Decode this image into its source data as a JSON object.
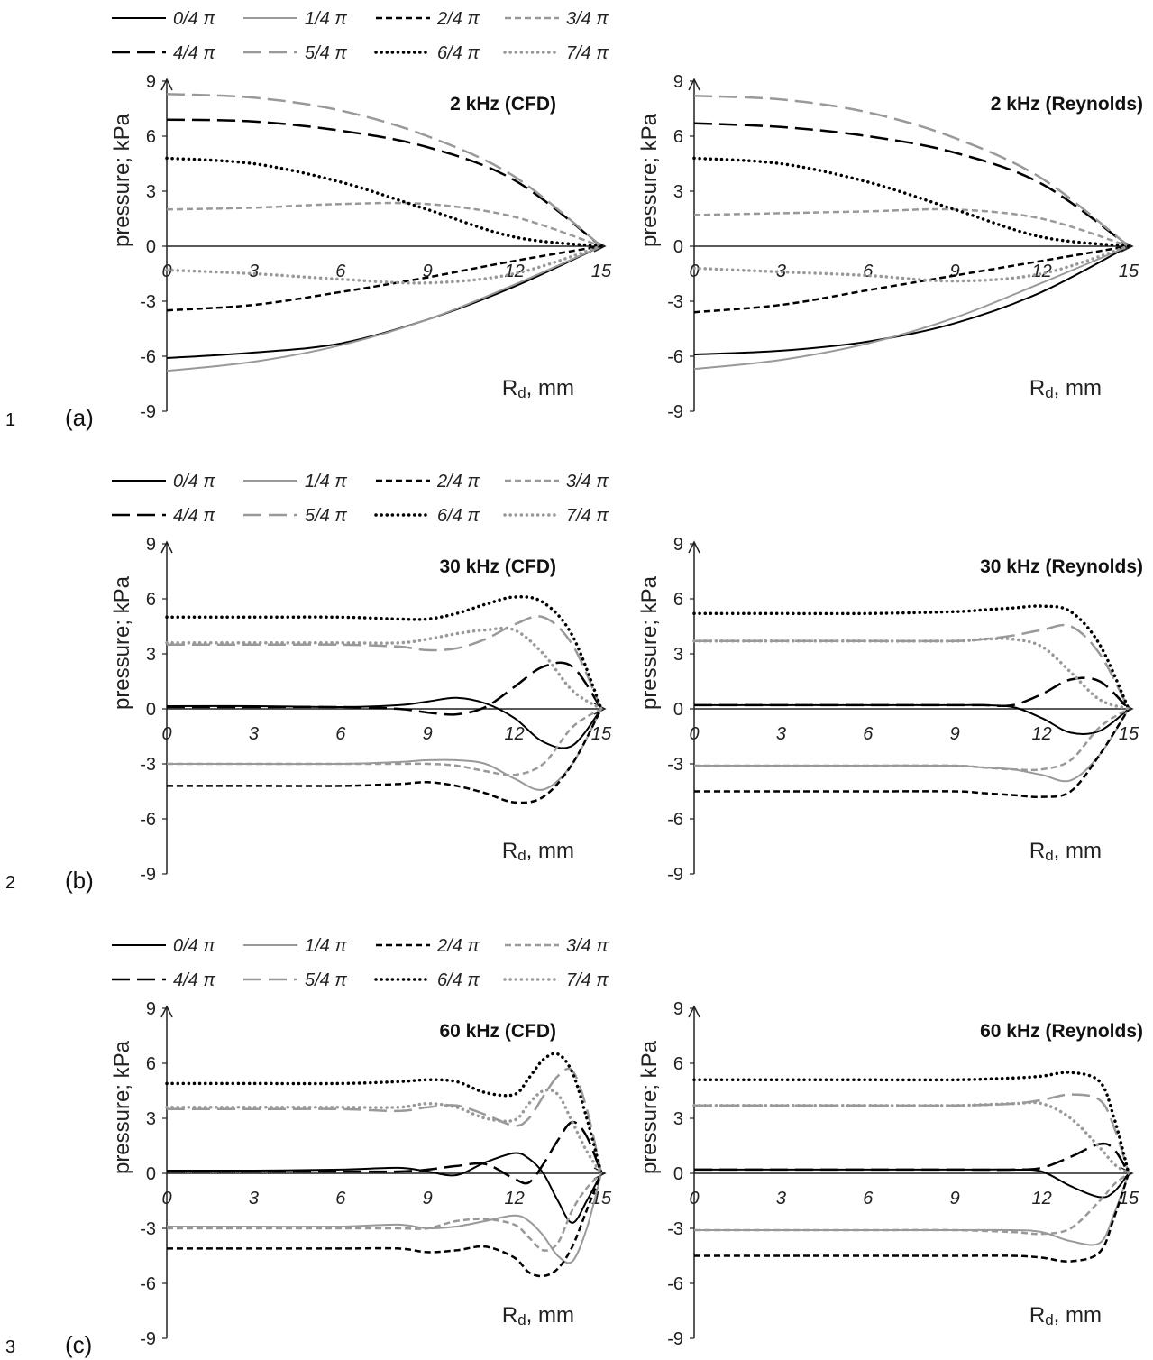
{
  "figure": {
    "rows": [
      {
        "number": "1",
        "letter": "(a)"
      },
      {
        "number": "2",
        "letter": "(b)"
      },
      {
        "number": "3",
        "letter": "(c)"
      }
    ],
    "legend_entries": [
      "0/4 π",
      "1/4 π",
      "2/4 π",
      "3/4 π",
      "4/4 π",
      "5/4 π",
      "6/4 π",
      "7/4 π"
    ],
    "series_styles": [
      {
        "color": "#000000",
        "dash": "solid",
        "width": 2
      },
      {
        "color": "#999999",
        "dash": "solid",
        "width": 2
      },
      {
        "color": "#000000",
        "dash": "short",
        "width": 2.5
      },
      {
        "color": "#999999",
        "dash": "short",
        "width": 2.5
      },
      {
        "color": "#000000",
        "dash": "long",
        "width": 2.5
      },
      {
        "color": "#999999",
        "dash": "long",
        "width": 2.5
      },
      {
        "color": "#000000",
        "dash": "dot",
        "width": 3.5
      },
      {
        "color": "#999999",
        "dash": "dot",
        "width": 3.5
      }
    ]
  },
  "chart_data": [
    {
      "type": "line",
      "title": "2 kHz (CFD)",
      "xlabel_main": "R",
      "xlabel_sub": "d",
      "xlabel_rest": ", mm",
      "ylabel": "pressure; kPa",
      "xlim": [
        0,
        15
      ],
      "ylim": [
        -9,
        9
      ],
      "xticks": [
        "0",
        "3",
        "6",
        "9",
        "12",
        "15"
      ],
      "yticks": [
        "9",
        "6",
        "3",
        "0",
        "-3",
        "-6",
        "-9"
      ],
      "grid": false,
      "legend": "top",
      "x": [
        0,
        3,
        6,
        9,
        12,
        15
      ],
      "series": [
        {
          "values": [
            -6.1,
            -5.8,
            -5.3,
            -4.0,
            -2.2,
            0
          ]
        },
        {
          "values": [
            -6.8,
            -6.3,
            -5.4,
            -4.0,
            -2.1,
            0
          ]
        },
        {
          "values": [
            -3.5,
            -3.2,
            -2.5,
            -1.7,
            -0.8,
            0
          ]
        },
        {
          "values": [
            2.0,
            2.1,
            2.3,
            2.3,
            1.6,
            0
          ]
        },
        {
          "values": [
            6.9,
            6.8,
            6.3,
            5.4,
            3.6,
            0
          ]
        },
        {
          "values": [
            8.3,
            8.1,
            7.4,
            6.0,
            3.8,
            0
          ]
        },
        {
          "values": [
            4.8,
            4.5,
            3.5,
            2.0,
            0.5,
            0
          ]
        },
        {
          "values": [
            -1.3,
            -1.5,
            -1.8,
            -2.0,
            -1.5,
            0
          ]
        }
      ]
    },
    {
      "type": "line",
      "title": "2 kHz (Reynolds)",
      "xlabel_main": "R",
      "xlabel_sub": "d",
      "xlabel_rest": ", mm",
      "ylabel": "pressure; kPa",
      "xlim": [
        0,
        15
      ],
      "ylim": [
        -9,
        9
      ],
      "xticks": [
        "0",
        "3",
        "6",
        "9",
        "12",
        "15"
      ],
      "yticks": [
        "9",
        "6",
        "3",
        "0",
        "-3",
        "-6",
        "-9"
      ],
      "grid": false,
      "x": [
        0,
        3,
        6,
        9,
        12,
        15
      ],
      "series": [
        {
          "values": [
            -5.9,
            -5.7,
            -5.2,
            -4.2,
            -2.5,
            0
          ]
        },
        {
          "values": [
            -6.7,
            -6.2,
            -5.3,
            -3.9,
            -2.0,
            0
          ]
        },
        {
          "values": [
            -3.6,
            -3.2,
            -2.4,
            -1.6,
            -0.8,
            0
          ]
        },
        {
          "values": [
            1.7,
            1.8,
            1.9,
            2.0,
            1.5,
            0
          ]
        },
        {
          "values": [
            6.7,
            6.5,
            6.0,
            5.1,
            3.4,
            0
          ]
        },
        {
          "values": [
            8.2,
            8.0,
            7.3,
            5.9,
            3.7,
            0
          ]
        },
        {
          "values": [
            4.8,
            4.5,
            3.5,
            2.0,
            0.5,
            0
          ]
        },
        {
          "values": [
            -1.2,
            -1.4,
            -1.6,
            -1.9,
            -1.5,
            0
          ]
        }
      ]
    },
    {
      "type": "line",
      "title": "30 kHz (CFD)",
      "xlabel_main": "R",
      "xlabel_sub": "d",
      "xlabel_rest": ", mm",
      "ylabel": "pressure; kPa",
      "xlim": [
        0,
        15
      ],
      "ylim": [
        -9,
        9
      ],
      "xticks": [
        "0",
        "3",
        "6",
        "9",
        "12",
        "15"
      ],
      "yticks": [
        "9",
        "6",
        "3",
        "0",
        "-3",
        "-6",
        "-9"
      ],
      "grid": false,
      "legend": "top",
      "x": [
        0,
        3,
        6,
        8,
        9,
        10,
        11,
        12,
        13,
        14,
        15
      ],
      "series": [
        {
          "values": [
            0.15,
            0.15,
            0.1,
            0.2,
            0.4,
            0.6,
            0.3,
            -0.5,
            -1.8,
            -2.0,
            0
          ]
        },
        {
          "values": [
            -3.0,
            -3.0,
            -3.0,
            -2.9,
            -2.8,
            -2.8,
            -3.0,
            -3.8,
            -4.4,
            -3.0,
            0
          ]
        },
        {
          "values": [
            -4.2,
            -4.2,
            -4.2,
            -4.1,
            -4.0,
            -4.2,
            -4.6,
            -5.1,
            -4.8,
            -3.0,
            0
          ]
        },
        {
          "values": [
            -3.0,
            -3.0,
            -3.0,
            -3.0,
            -3.0,
            -3.1,
            -3.4,
            -3.6,
            -3.0,
            -1.0,
            0
          ]
        },
        {
          "values": [
            0.1,
            0.1,
            0.1,
            0.0,
            -0.2,
            -0.3,
            0.1,
            1.2,
            2.3,
            2.3,
            0
          ]
        },
        {
          "values": [
            3.5,
            3.5,
            3.5,
            3.4,
            3.2,
            3.3,
            3.8,
            4.6,
            5.0,
            3.5,
            0
          ]
        },
        {
          "values": [
            5.0,
            5.0,
            5.0,
            4.9,
            4.9,
            5.2,
            5.7,
            6.1,
            5.8,
            4.0,
            0
          ]
        },
        {
          "values": [
            3.6,
            3.6,
            3.6,
            3.6,
            3.8,
            4.1,
            4.3,
            4.3,
            3.0,
            1.0,
            0
          ]
        }
      ]
    },
    {
      "type": "line",
      "title": "30 kHz (Reynolds)",
      "xlabel_main": "R",
      "xlabel_sub": "d",
      "xlabel_rest": ", mm",
      "ylabel": "pressure; kPa",
      "xlim": [
        0,
        15
      ],
      "ylim": [
        -9,
        9
      ],
      "xticks": [
        "0",
        "3",
        "6",
        "9",
        "12",
        "15"
      ],
      "yticks": [
        "9",
        "6",
        "3",
        "0",
        "-3",
        "-6",
        "-9"
      ],
      "grid": false,
      "x": [
        0,
        3,
        6,
        9,
        10,
        11,
        12,
        13,
        14,
        15
      ],
      "series": [
        {
          "values": [
            0.2,
            0.2,
            0.2,
            0.2,
            0.2,
            0.1,
            -0.5,
            -1.3,
            -1.2,
            0
          ]
        },
        {
          "values": [
            -3.1,
            -3.1,
            -3.1,
            -3.1,
            -3.2,
            -3.3,
            -3.6,
            -3.9,
            -2.5,
            0
          ]
        },
        {
          "values": [
            -4.5,
            -4.5,
            -4.5,
            -4.5,
            -4.6,
            -4.7,
            -4.8,
            -4.5,
            -2.5,
            0
          ]
        },
        {
          "values": [
            -3.1,
            -3.1,
            -3.1,
            -3.1,
            -3.2,
            -3.3,
            -3.3,
            -2.8,
            -1.0,
            0
          ]
        },
        {
          "values": [
            0.2,
            0.2,
            0.2,
            0.2,
            0.2,
            0.2,
            0.8,
            1.6,
            1.5,
            0
          ]
        },
        {
          "values": [
            3.7,
            3.7,
            3.7,
            3.7,
            3.8,
            4.0,
            4.3,
            4.5,
            3.0,
            0
          ]
        },
        {
          "values": [
            5.2,
            5.2,
            5.2,
            5.3,
            5.4,
            5.5,
            5.6,
            5.3,
            3.5,
            0
          ]
        },
        {
          "values": [
            3.7,
            3.7,
            3.7,
            3.7,
            3.8,
            3.8,
            3.4,
            2.0,
            0.5,
            0
          ]
        }
      ]
    },
    {
      "type": "line",
      "title": "60 kHz (CFD)",
      "xlabel_main": "R",
      "xlabel_sub": "d",
      "xlabel_rest": ", mm",
      "ylabel": "pressure; kPa",
      "xlim": [
        0,
        15
      ],
      "ylim": [
        -9,
        9
      ],
      "xticks": [
        "0",
        "3",
        "6",
        "9",
        "12",
        "15"
      ],
      "yticks": [
        "9",
        "6",
        "3",
        "0",
        "-3",
        "-6",
        "-9"
      ],
      "grid": false,
      "legend": "top",
      "x": [
        0,
        3,
        6,
        8,
        9,
        10,
        11,
        12,
        12.5,
        13,
        13.5,
        14,
        14.5,
        15
      ],
      "series": [
        {
          "values": [
            0.15,
            0.15,
            0.2,
            0.3,
            0.1,
            -0.1,
            0.6,
            1.1,
            0.8,
            0,
            -1.5,
            -2.7,
            -1.5,
            0
          ]
        },
        {
          "values": [
            -2.9,
            -2.9,
            -2.9,
            -2.8,
            -3.0,
            -2.9,
            -2.6,
            -2.3,
            -2.6,
            -3.4,
            -4.5,
            -4.8,
            -3.0,
            0
          ]
        },
        {
          "values": [
            -4.1,
            -4.1,
            -4.1,
            -4.1,
            -4.3,
            -4.2,
            -4.0,
            -4.6,
            -5.4,
            -5.6,
            -5.2,
            -4.0,
            -2.0,
            0
          ]
        },
        {
          "values": [
            -3.0,
            -3.0,
            -3.0,
            -3.0,
            -3.0,
            -2.6,
            -2.5,
            -2.8,
            -3.5,
            -4.2,
            -3.8,
            -2.0,
            -0.8,
            0
          ]
        },
        {
          "values": [
            0.1,
            0.1,
            0.1,
            0.1,
            0.2,
            0.4,
            0.5,
            -0.3,
            -0.5,
            0.5,
            1.8,
            2.8,
            2.0,
            0
          ]
        },
        {
          "values": [
            3.5,
            3.5,
            3.5,
            3.4,
            3.6,
            3.7,
            3.2,
            2.6,
            3.0,
            4.2,
            5.3,
            5.6,
            3.5,
            0
          ]
        },
        {
          "values": [
            4.9,
            4.9,
            4.9,
            5.0,
            5.1,
            5.0,
            4.4,
            4.3,
            5.2,
            6.2,
            6.5,
            5.5,
            3.0,
            0
          ]
        },
        {
          "values": [
            3.6,
            3.6,
            3.6,
            3.6,
            3.8,
            3.6,
            3.0,
            2.9,
            3.8,
            4.5,
            4.3,
            2.8,
            1.2,
            0
          ]
        }
      ]
    },
    {
      "type": "line",
      "title": "60 kHz (Reynolds)",
      "xlabel_main": "R",
      "xlabel_sub": "d",
      "xlabel_rest": ", mm",
      "ylabel": "pressure; kPa",
      "xlim": [
        0,
        15
      ],
      "ylim": [
        -9,
        9
      ],
      "xticks": [
        "0",
        "3",
        "6",
        "9",
        "12",
        "15"
      ],
      "yticks": [
        "9",
        "6",
        "3",
        "0",
        "-3",
        "-6",
        "-9"
      ],
      "grid": false,
      "x": [
        0,
        3,
        6,
        9,
        11,
        12,
        13,
        14,
        14.5,
        15
      ],
      "series": [
        {
          "values": [
            0.2,
            0.2,
            0.2,
            0.2,
            0.2,
            0.1,
            -0.7,
            -1.3,
            -1.0,
            0
          ]
        },
        {
          "values": [
            -3.1,
            -3.1,
            -3.1,
            -3.1,
            -3.1,
            -3.2,
            -3.7,
            -3.8,
            -2.2,
            0
          ]
        },
        {
          "values": [
            -4.5,
            -4.5,
            -4.5,
            -4.5,
            -4.5,
            -4.6,
            -4.8,
            -4.3,
            -2.4,
            0
          ]
        },
        {
          "values": [
            -3.1,
            -3.1,
            -3.1,
            -3.1,
            -3.2,
            -3.3,
            -3.0,
            -1.5,
            -0.6,
            0
          ]
        },
        {
          "values": [
            0.2,
            0.2,
            0.2,
            0.2,
            0.2,
            0.3,
            0.9,
            1.6,
            1.3,
            0
          ]
        },
        {
          "values": [
            3.7,
            3.7,
            3.7,
            3.7,
            3.8,
            4.0,
            4.3,
            4.0,
            2.5,
            0
          ]
        },
        {
          "values": [
            5.1,
            5.1,
            5.1,
            5.1,
            5.2,
            5.3,
            5.5,
            5.0,
            3.0,
            0
          ]
        },
        {
          "values": [
            3.7,
            3.7,
            3.7,
            3.7,
            3.8,
            3.8,
            3.0,
            1.4,
            0.5,
            0
          ]
        }
      ]
    }
  ]
}
